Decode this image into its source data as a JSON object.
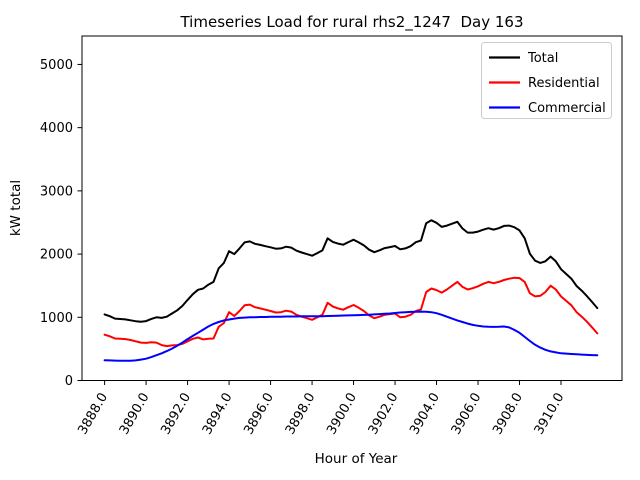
{
  "chart_data": {
    "type": "line",
    "title": "Timeseries Load for rural rhs2_1247  Day 163",
    "xlabel": "Hour of Year",
    "ylabel": "kW total",
    "xlim": [
      3886.91,
      3912.94
    ],
    "ylim": [
      0,
      5450
    ],
    "grid": false,
    "legend_position": "upper right",
    "x_tick_values": [
      3888,
      3890,
      3892,
      3894,
      3896,
      3898,
      3900,
      3902,
      3904,
      3906,
      3908,
      3910
    ],
    "x_tick_labels": [
      "3888.0",
      "3890.0",
      "3892.0",
      "3894.0",
      "3896.0",
      "3898.0",
      "3900.0",
      "3902.0",
      "3904.0",
      "3906.0",
      "3908.0",
      "3910.0"
    ],
    "y_tick_values": [
      0,
      1000,
      2000,
      3000,
      4000,
      5000
    ],
    "y_tick_labels": [
      "0",
      "1000",
      "2000",
      "3000",
      "4000",
      "5000"
    ],
    "x_start": 3888.0,
    "x_step": 0.25,
    "n_points": 96,
    "series": [
      {
        "name": "Total",
        "color": "#000000",
        "values": [
          1045,
          1018,
          980,
          973,
          967,
          953,
          938,
          930,
          940,
          975,
          1000,
          990,
          1010,
          1060,
          1110,
          1180,
          1275,
          1365,
          1435,
          1455,
          1515,
          1560,
          1775,
          1860,
          2045,
          2000,
          2090,
          2185,
          2200,
          2162,
          2145,
          2125,
          2108,
          2085,
          2090,
          2117,
          2102,
          2053,
          2025,
          2000,
          1975,
          2016,
          2058,
          2250,
          2192,
          2165,
          2148,
          2190,
          2227,
          2185,
          2138,
          2070,
          2030,
          2060,
          2095,
          2110,
          2128,
          2075,
          2090,
          2125,
          2188,
          2215,
          2488,
          2535,
          2495,
          2430,
          2450,
          2480,
          2510,
          2405,
          2340,
          2340,
          2355,
          2385,
          2410,
          2388,
          2410,
          2445,
          2450,
          2425,
          2375,
          2250,
          2005,
          1895,
          1860,
          1885,
          1960,
          1885,
          1760,
          1685,
          1610,
          1495,
          1420,
          1335,
          1242,
          1145
        ]
      },
      {
        "name": "Residential",
        "color": "#ff0000",
        "values": [
          725,
          700,
          665,
          660,
          655,
          640,
          620,
          600,
          595,
          605,
          600,
          560,
          545,
          555,
          560,
          580,
          620,
          660,
          680,
          650,
          660,
          665,
          850,
          910,
          1080,
          1020,
          1100,
          1190,
          1200,
          1160,
          1140,
          1120,
          1100,
          1075,
          1080,
          1105,
          1090,
          1040,
          1010,
          985,
          960,
          1000,
          1040,
          1230,
          1170,
          1140,
          1120,
          1160,
          1195,
          1150,
          1100,
          1030,
          985,
          1010,
          1040,
          1050,
          1060,
          1000,
          1010,
          1040,
          1100,
          1125,
          1400,
          1455,
          1430,
          1390,
          1440,
          1500,
          1560,
          1480,
          1440,
          1460,
          1490,
          1530,
          1560,
          1540,
          1560,
          1590,
          1610,
          1625,
          1620,
          1560,
          1380,
          1330,
          1340,
          1400,
          1500,
          1440,
          1330,
          1260,
          1190,
          1080,
          1010,
          930,
          840,
          745
        ]
      },
      {
        "name": "Commercial",
        "color": "#0000ff",
        "values": [
          320,
          318,
          315,
          313,
          312,
          313,
          318,
          330,
          345,
          370,
          400,
          430,
          465,
          505,
          550,
          600,
          655,
          705,
          755,
          805,
          855,
          895,
          925,
          950,
          965,
          980,
          990,
          995,
          1000,
          1002,
          1005,
          1005,
          1008,
          1010,
          1010,
          1012,
          1012,
          1013,
          1015,
          1015,
          1015,
          1016,
          1018,
          1020,
          1022,
          1025,
          1028,
          1030,
          1032,
          1035,
          1038,
          1040,
          1045,
          1050,
          1055,
          1060,
          1068,
          1075,
          1080,
          1085,
          1088,
          1090,
          1088,
          1080,
          1065,
          1040,
          1010,
          980,
          950,
          925,
          900,
          880,
          865,
          855,
          850,
          848,
          850,
          855,
          840,
          800,
          755,
          690,
          625,
          565,
          520,
          485,
          460,
          445,
          430,
          425,
          420,
          415,
          410,
          405,
          402,
          400
        ]
      }
    ]
  }
}
